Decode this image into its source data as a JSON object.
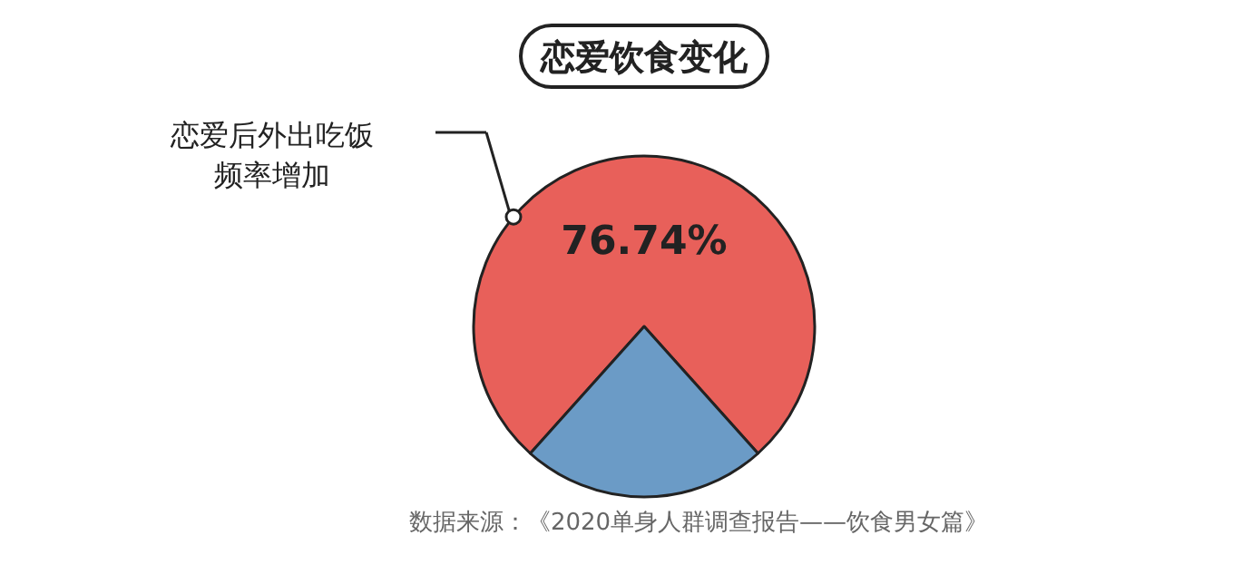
{
  "chart_data": {
    "type": "pie",
    "title": "恋爱饮食变化",
    "categories": [
      "恋爱后外出吃饭频率增加",
      null
    ],
    "values": [
      76.74,
      23.26
    ],
    "colors": [
      "#e8605a",
      "#6b9bc6"
    ],
    "value_labels": [
      "76.74%",
      null
    ],
    "annotations": [
      "数据来源：《2020单身人群调查报告——饮食男女篇》"
    ]
  }
}
